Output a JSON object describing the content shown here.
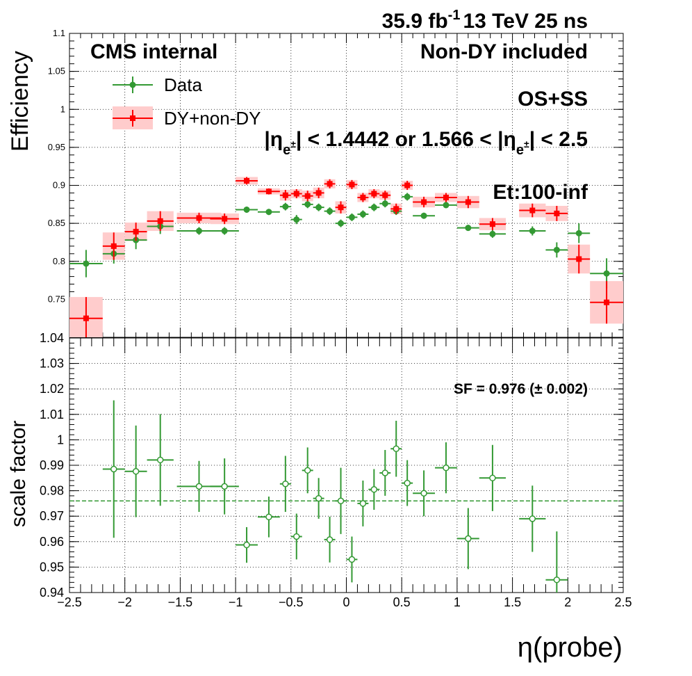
{
  "header": {
    "lumi_value": "35.9 fb",
    "lumi_exp": "-1",
    "energy": "13 TeV 25 ns"
  },
  "labels": {
    "experiment": "CMS internal",
    "sample": "Non-DY included",
    "charge": "OS+SS",
    "eta_left": "|η",
    "eta_sub1": "e",
    "eta_sup1": "±",
    "eta_mid": "| < 1.4442 or 1.566 < |η",
    "eta_sub2": "e",
    "eta_sup2": "±",
    "eta_right": "| < 2.5",
    "et_range": "Et:100-inf",
    "sf_text": "SF = 0.976 (± 0.002)"
  },
  "colors": {
    "data": "#339933",
    "mc": "#ff0000",
    "mc_band": "#ffcccc",
    "sf_line": "#339933"
  },
  "chart_data": [
    {
      "type": "scatter",
      "ylabel": "Efficiency",
      "xlim": [
        -2.5,
        2.5
      ],
      "ylim": [
        0.7,
        1.1
      ],
      "yticks": [
        "1.1",
        "1.05",
        "1",
        "0.95",
        "0.9",
        "0.85",
        "0.8",
        "0.75"
      ],
      "grid": true,
      "legend": {
        "position": "top-left",
        "entries": [
          "Data",
          "DY+non-DY"
        ]
      },
      "series": [
        {
          "name": "Data",
          "points": [
            {
              "x": -2.35,
              "xerr": 0.15,
              "y": 0.797,
              "yerr": 0.018
            },
            {
              "x": -2.1,
              "xerr": 0.1,
              "y": 0.81,
              "yerr": 0.013
            },
            {
              "x": -1.9,
              "xerr": 0.1,
              "y": 0.828,
              "yerr": 0.012
            },
            {
              "x": -1.68,
              "xerr": 0.12,
              "y": 0.846,
              "yerr": 0.01
            },
            {
              "x": -1.33,
              "xerr": 0.2,
              "y": 0.84,
              "yerr": 0.005
            },
            {
              "x": -1.1,
              "xerr": 0.13,
              "y": 0.84,
              "yerr": 0.005
            },
            {
              "x": -0.9,
              "xerr": 0.1,
              "y": 0.868,
              "yerr": 0.004
            },
            {
              "x": -0.7,
              "xerr": 0.1,
              "y": 0.865,
              "yerr": 0.004
            },
            {
              "x": -0.55,
              "xerr": 0.05,
              "y": 0.872,
              "yerr": 0.005
            },
            {
              "x": -0.45,
              "xerr": 0.05,
              "y": 0.855,
              "yerr": 0.006
            },
            {
              "x": -0.35,
              "xerr": 0.05,
              "y": 0.875,
              "yerr": 0.005
            },
            {
              "x": -0.25,
              "xerr": 0.05,
              "y": 0.871,
              "yerr": 0.005
            },
            {
              "x": -0.15,
              "xerr": 0.05,
              "y": 0.866,
              "yerr": 0.005
            },
            {
              "x": -0.05,
              "xerr": 0.05,
              "y": 0.85,
              "yerr": 0.005
            },
            {
              "x": 0.05,
              "xerr": 0.05,
              "y": 0.858,
              "yerr": 0.005
            },
            {
              "x": 0.15,
              "xerr": 0.05,
              "y": 0.862,
              "yerr": 0.005
            },
            {
              "x": 0.25,
              "xerr": 0.05,
              "y": 0.871,
              "yerr": 0.005
            },
            {
              "x": 0.35,
              "xerr": 0.05,
              "y": 0.876,
              "yerr": 0.005
            },
            {
              "x": 0.45,
              "xerr": 0.05,
              "y": 0.866,
              "yerr": 0.005
            },
            {
              "x": 0.55,
              "xerr": 0.05,
              "y": 0.885,
              "yerr": 0.005
            },
            {
              "x": 0.7,
              "xerr": 0.1,
              "y": 0.86,
              "yerr": 0.004
            },
            {
              "x": 0.9,
              "xerr": 0.1,
              "y": 0.874,
              "yerr": 0.004
            },
            {
              "x": 1.1,
              "xerr": 0.1,
              "y": 0.844,
              "yerr": 0.004
            },
            {
              "x": 1.32,
              "xerr": 0.12,
              "y": 0.836,
              "yerr": 0.005
            },
            {
              "x": 1.68,
              "xerr": 0.12,
              "y": 0.84,
              "yerr": 0.006
            },
            {
              "x": 1.9,
              "xerr": 0.1,
              "y": 0.815,
              "yerr": 0.01
            },
            {
              "x": 2.1,
              "xerr": 0.1,
              "y": 0.837,
              "yerr": 0.013
            },
            {
              "x": 2.35,
              "xerr": 0.15,
              "y": 0.784,
              "yerr": 0.02
            }
          ]
        },
        {
          "name": "DY+non-DY",
          "points": [
            {
              "x": -2.35,
              "xerr": 0.15,
              "y": 0.725,
              "yerr": 0.028
            },
            {
              "x": -2.1,
              "xerr": 0.1,
              "y": 0.82,
              "yerr": 0.018
            },
            {
              "x": -1.9,
              "xerr": 0.1,
              "y": 0.839,
              "yerr": 0.012
            },
            {
              "x": -1.68,
              "xerr": 0.12,
              "y": 0.853,
              "yerr": 0.013
            },
            {
              "x": -1.33,
              "xerr": 0.2,
              "y": 0.857,
              "yerr": 0.007
            },
            {
              "x": -1.1,
              "xerr": 0.13,
              "y": 0.856,
              "yerr": 0.007
            },
            {
              "x": -0.9,
              "xerr": 0.1,
              "y": 0.906,
              "yerr": 0.005
            },
            {
              "x": -0.7,
              "xerr": 0.1,
              "y": 0.892,
              "yerr": 0.004
            },
            {
              "x": -0.55,
              "xerr": 0.05,
              "y": 0.887,
              "yerr": 0.007
            },
            {
              "x": -0.45,
              "xerr": 0.05,
              "y": 0.889,
              "yerr": 0.006
            },
            {
              "x": -0.35,
              "xerr": 0.05,
              "y": 0.886,
              "yerr": 0.007
            },
            {
              "x": -0.25,
              "xerr": 0.05,
              "y": 0.89,
              "yerr": 0.007
            },
            {
              "x": -0.15,
              "xerr": 0.05,
              "y": 0.902,
              "yerr": 0.006
            },
            {
              "x": -0.05,
              "xerr": 0.05,
              "y": 0.871,
              "yerr": 0.008
            },
            {
              "x": 0.05,
              "xerr": 0.05,
              "y": 0.901,
              "yerr": 0.006
            },
            {
              "x": 0.15,
              "xerr": 0.05,
              "y": 0.884,
              "yerr": 0.006
            },
            {
              "x": 0.25,
              "xerr": 0.05,
              "y": 0.889,
              "yerr": 0.006
            },
            {
              "x": 0.35,
              "xerr": 0.05,
              "y": 0.887,
              "yerr": 0.006
            },
            {
              "x": 0.45,
              "xerr": 0.05,
              "y": 0.869,
              "yerr": 0.007
            },
            {
              "x": 0.55,
              "xerr": 0.05,
              "y": 0.9,
              "yerr": 0.006
            },
            {
              "x": 0.7,
              "xerr": 0.1,
              "y": 0.878,
              "yerr": 0.007
            },
            {
              "x": 0.9,
              "xerr": 0.1,
              "y": 0.884,
              "yerr": 0.006
            },
            {
              "x": 1.1,
              "xerr": 0.1,
              "y": 0.878,
              "yerr": 0.008
            },
            {
              "x": 1.32,
              "xerr": 0.12,
              "y": 0.849,
              "yerr": 0.008
            },
            {
              "x": 1.68,
              "xerr": 0.12,
              "y": 0.867,
              "yerr": 0.009
            },
            {
              "x": 1.9,
              "xerr": 0.1,
              "y": 0.863,
              "yerr": 0.01
            },
            {
              "x": 2.1,
              "xerr": 0.1,
              "y": 0.803,
              "yerr": 0.019
            },
            {
              "x": 2.35,
              "xerr": 0.15,
              "y": 0.746,
              "yerr": 0.028
            }
          ]
        }
      ]
    },
    {
      "type": "scatter",
      "xlabel": "η(probe)",
      "ylabel": "scale factor",
      "xlim": [
        -2.5,
        2.5
      ],
      "ylim": [
        0.94,
        1.04
      ],
      "xticks": [
        "−2.5",
        "−2",
        "−1.5",
        "−1",
        "−0.5",
        "0",
        "0.5",
        "1",
        "1.5",
        "2",
        "2.5"
      ],
      "yticks": [
        "1.04",
        "1.03",
        "1.02",
        "1.01",
        "1",
        "0.99",
        "0.98",
        "0.97",
        "0.96",
        "0.95",
        "0.94"
      ],
      "grid": true,
      "sf_line": 0.976,
      "series": [
        {
          "name": "scale factor",
          "points": [
            {
              "x": -2.1,
              "xerr": 0.1,
              "y": 0.9885,
              "yerr": 0.027
            },
            {
              "x": -1.9,
              "xerr": 0.1,
              "y": 0.9876,
              "yerr": 0.018
            },
            {
              "x": -1.68,
              "xerr": 0.12,
              "y": 0.9921,
              "yerr": 0.018
            },
            {
              "x": -1.33,
              "xerr": 0.2,
              "y": 0.9817,
              "yerr": 0.01
            },
            {
              "x": -1.1,
              "xerr": 0.13,
              "y": 0.9817,
              "yerr": 0.011
            },
            {
              "x": -0.9,
              "xerr": 0.1,
              "y": 0.9587,
              "yerr": 0.007
            },
            {
              "x": -0.7,
              "xerr": 0.1,
              "y": 0.9697,
              "yerr": 0.008
            },
            {
              "x": -0.55,
              "xerr": 0.05,
              "y": 0.9827,
              "yerr": 0.011
            },
            {
              "x": -0.45,
              "xerr": 0.05,
              "y": 0.962,
              "yerr": 0.009
            },
            {
              "x": -0.35,
              "xerr": 0.05,
              "y": 0.988,
              "yerr": 0.009
            },
            {
              "x": -0.25,
              "xerr": 0.05,
              "y": 0.977,
              "yerr": 0.008
            },
            {
              "x": -0.15,
              "xerr": 0.05,
              "y": 0.9608,
              "yerr": 0.009
            },
            {
              "x": -0.05,
              "xerr": 0.05,
              "y": 0.976,
              "yerr": 0.013
            },
            {
              "x": 0.05,
              "xerr": 0.05,
              "y": 0.953,
              "yerr": 0.009
            },
            {
              "x": 0.15,
              "xerr": 0.05,
              "y": 0.975,
              "yerr": 0.009
            },
            {
              "x": 0.25,
              "xerr": 0.05,
              "y": 0.9805,
              "yerr": 0.008
            },
            {
              "x": 0.35,
              "xerr": 0.05,
              "y": 0.987,
              "yerr": 0.009
            },
            {
              "x": 0.45,
              "xerr": 0.05,
              "y": 0.9965,
              "yerr": 0.011
            },
            {
              "x": 0.55,
              "xerr": 0.05,
              "y": 0.983,
              "yerr": 0.009
            },
            {
              "x": 0.7,
              "xerr": 0.1,
              "y": 0.979,
              "yerr": 0.009
            },
            {
              "x": 0.9,
              "xerr": 0.1,
              "y": 0.989,
              "yerr": 0.01
            },
            {
              "x": 1.1,
              "xerr": 0.1,
              "y": 0.9612,
              "yerr": 0.012
            },
            {
              "x": 1.32,
              "xerr": 0.12,
              "y": 0.985,
              "yerr": 0.013
            },
            {
              "x": 1.68,
              "xerr": 0.12,
              "y": 0.969,
              "yerr": 0.013
            },
            {
              "x": 1.9,
              "xerr": 0.1,
              "y": 0.945,
              "yerr": 0.019
            }
          ]
        }
      ]
    }
  ]
}
